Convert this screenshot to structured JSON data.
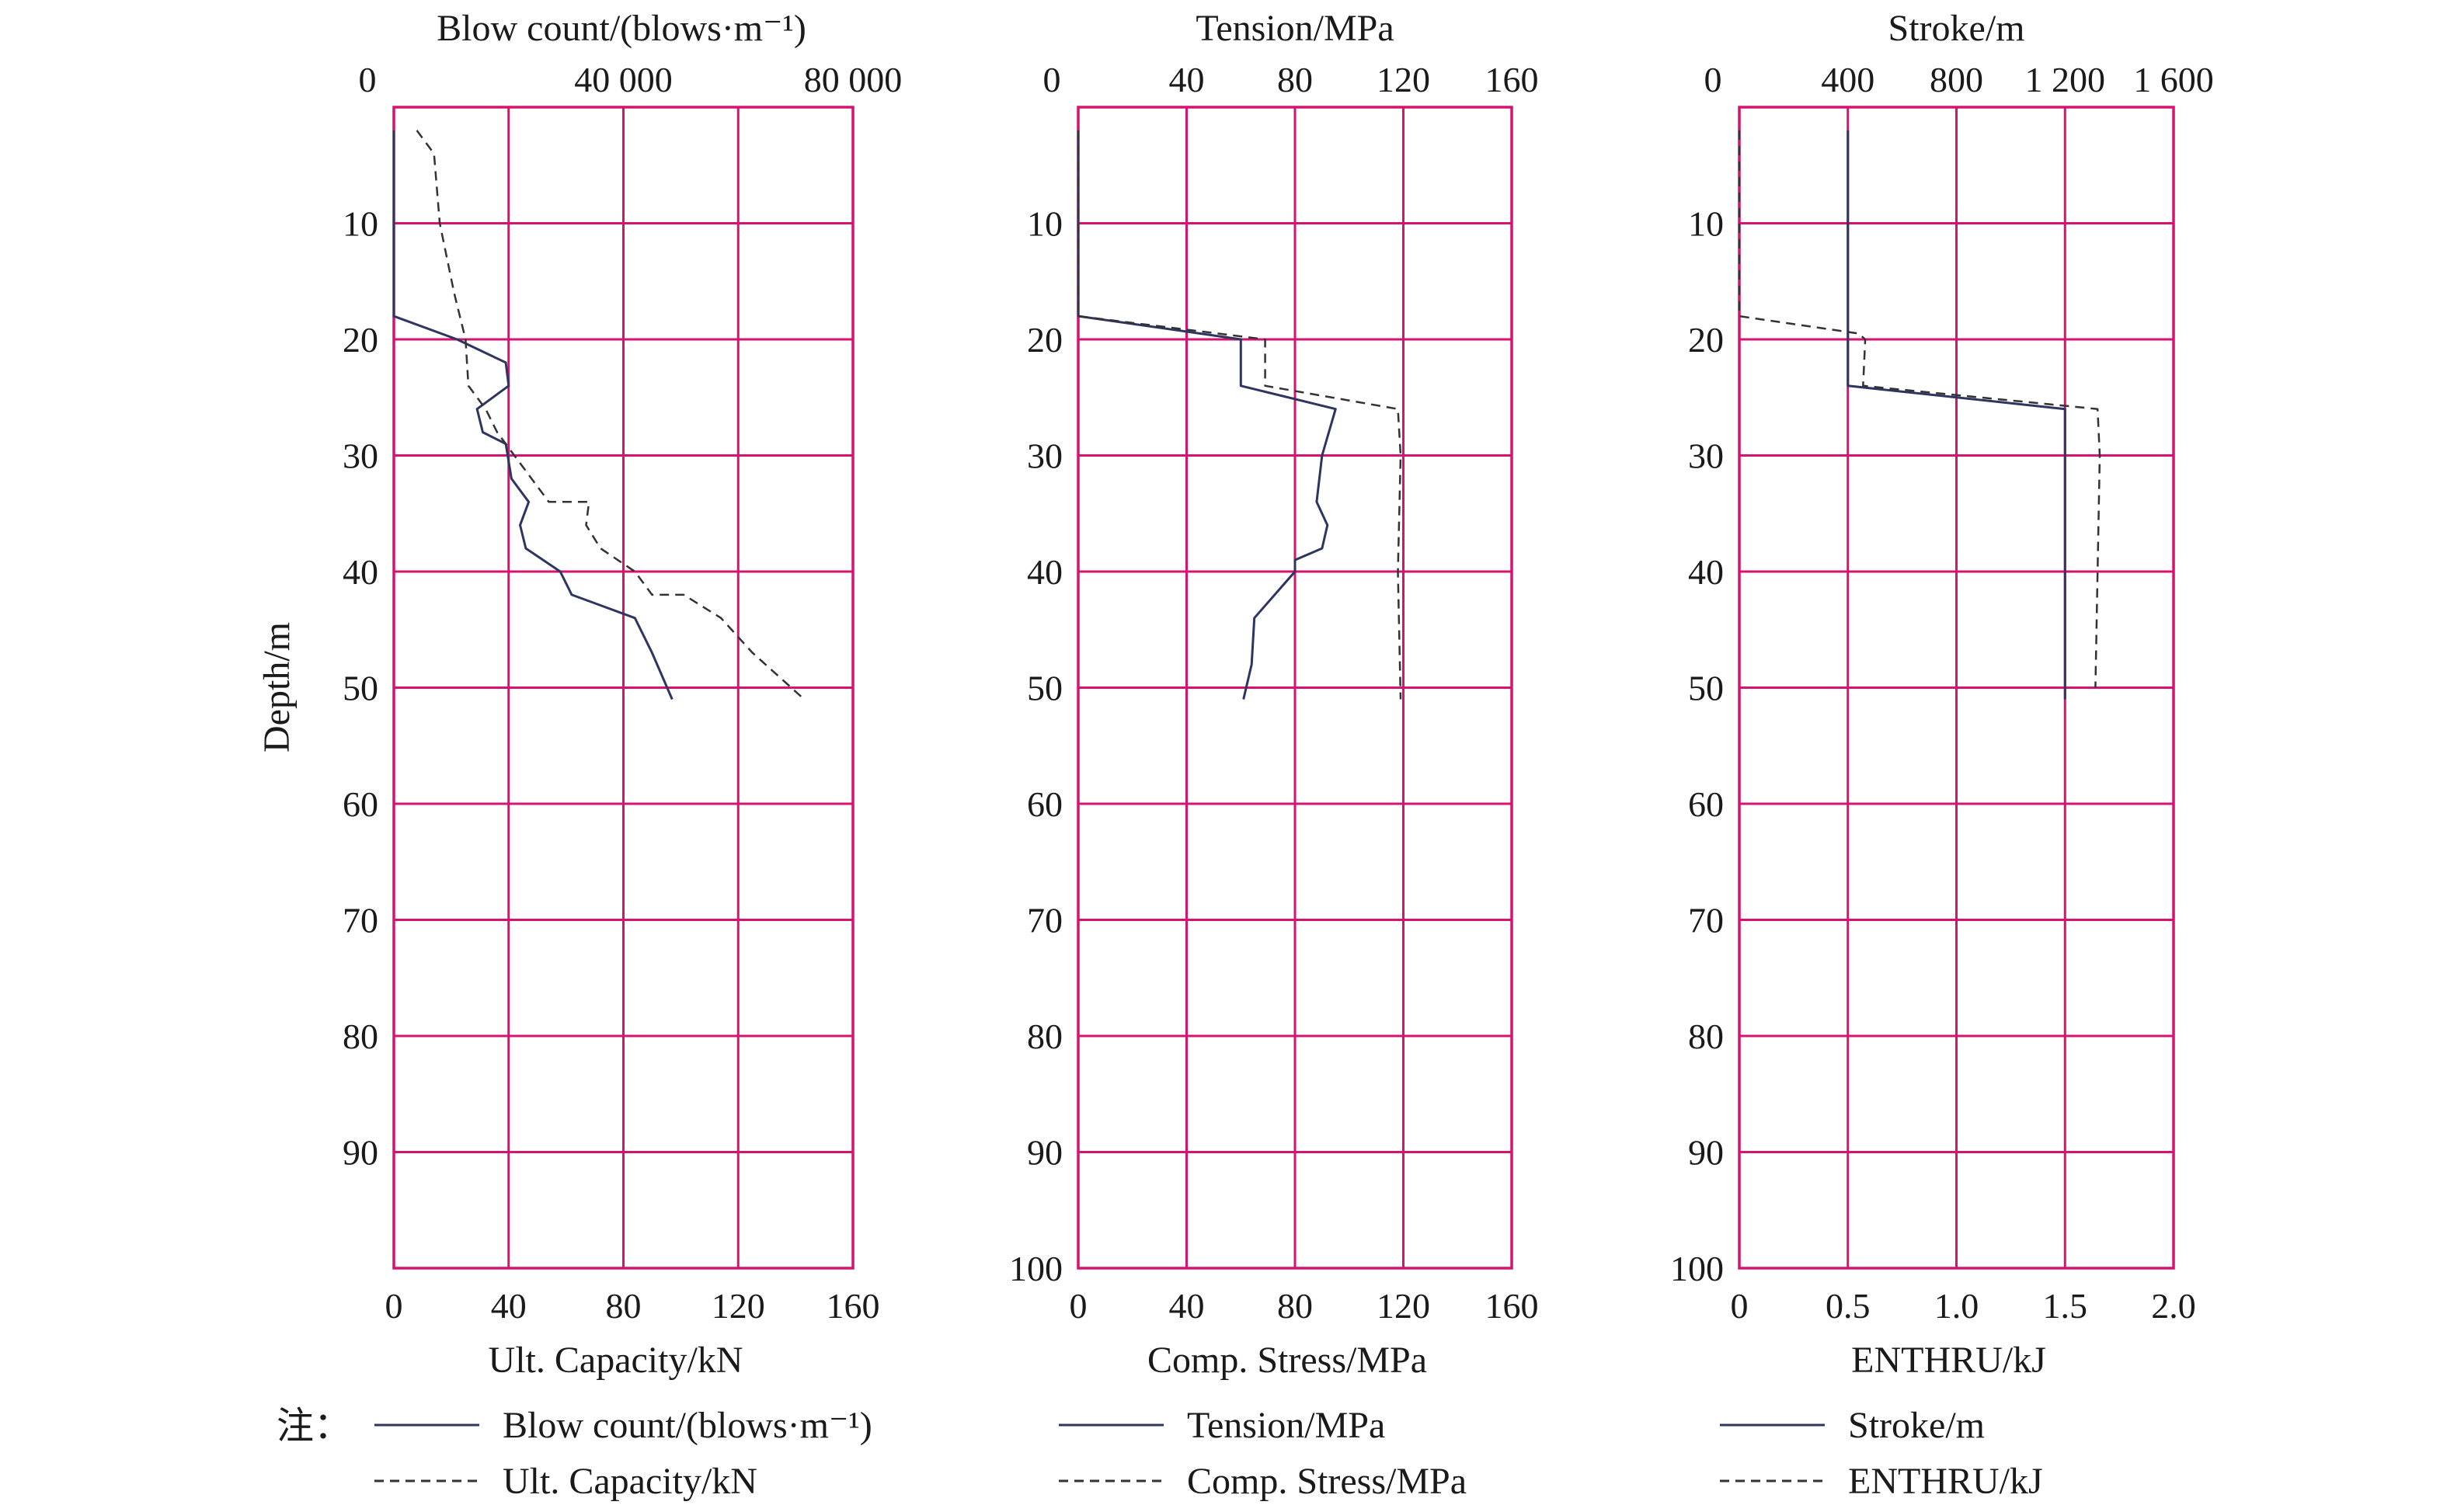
{
  "colors": {
    "grid": "#d6136f",
    "solid_line": "#2e3560",
    "dashed_line": "#333333",
    "text": "#1a1a1a",
    "background": "#ffffff"
  },
  "y_axis": {
    "label": "Depth/m",
    "ticks": [
      "0",
      "10",
      "20",
      "30",
      "40",
      "50",
      "60",
      "70",
      "80",
      "90",
      "100"
    ]
  },
  "legend": {
    "note": "注："
  },
  "chart_data": [
    {
      "type": "line",
      "top_axis": {
        "label": "Blow count/(blows·m⁻¹)",
        "ticks": [
          "0",
          "40 000",
          "80 000"
        ],
        "range": [
          0,
          80000
        ]
      },
      "bottom_axis": {
        "label": "Ult. Capacity/kN",
        "ticks": [
          "0",
          "40",
          "80",
          "120",
          "160"
        ],
        "range": [
          0,
          160
        ]
      },
      "ylim": [
        0,
        100
      ],
      "grid": true,
      "series": [
        {
          "name": "Blow count/(blows·m⁻¹)",
          "axis": "bottom",
          "style": "solid",
          "x": [
            0,
            0,
            22,
            39,
            40,
            29,
            31,
            39,
            41,
            47,
            44,
            46,
            58,
            62,
            84,
            90,
            97
          ],
          "y": [
            2,
            18,
            20,
            22,
            24,
            26,
            28,
            29,
            32,
            34,
            36,
            38,
            40,
            42,
            44,
            47,
            51
          ]
        },
        {
          "name": "Ult. Capacity/kN",
          "axis": "bottom",
          "style": "dashed",
          "x": [
            8,
            14,
            16,
            21,
            25,
            26,
            32,
            36,
            42,
            48,
            54,
            62,
            68,
            67,
            72,
            84,
            90,
            101,
            114,
            125,
            143
          ],
          "y": [
            2,
            4,
            10,
            16,
            20,
            24,
            26,
            28,
            30,
            32,
            34,
            34,
            34,
            36,
            38,
            40,
            42,
            42,
            44,
            47,
            51
          ]
        }
      ]
    },
    {
      "type": "line",
      "top_axis": {
        "label": "Tension/MPa",
        "ticks": [
          "0",
          "40",
          "80",
          "120",
          "160"
        ],
        "range": [
          0,
          160
        ]
      },
      "bottom_axis": {
        "label": "Comp. Stress/MPa",
        "ticks": [
          "0",
          "40",
          "80",
          "120",
          "160"
        ],
        "range": [
          0,
          160
        ]
      },
      "ylim": [
        0,
        100
      ],
      "grid": true,
      "series": [
        {
          "name": "Tension/MPa",
          "axis": "top",
          "style": "solid",
          "x": [
            0,
            0,
            60,
            60,
            60,
            95,
            90,
            88,
            92,
            90,
            80,
            80,
            65,
            64,
            61
          ],
          "y": [
            2,
            18,
            20,
            21,
            24,
            26,
            30,
            34,
            36,
            38,
            39,
            40,
            44,
            48,
            51
          ]
        },
        {
          "name": "Comp. Stress/MPa",
          "axis": "bottom",
          "style": "dashed",
          "x": [
            0,
            0,
            69,
            69,
            118,
            119,
            118,
            119
          ],
          "y": [
            2,
            18,
            20,
            24,
            26,
            30,
            40,
            51
          ]
        }
      ]
    },
    {
      "type": "line",
      "top_axis": {
        "label": "Stroke/m",
        "ticks": [
          "0",
          "400",
          "800",
          "1 200",
          "1 600"
        ],
        "range": [
          0,
          1600
        ]
      },
      "bottom_axis": {
        "label": "ENTHRU/kJ",
        "ticks": [
          "0",
          "0.5",
          "1.0",
          "1.5",
          "2.0"
        ],
        "range": [
          0,
          2
        ]
      },
      "ylim": [
        0,
        100
      ],
      "grid": true,
      "series": [
        {
          "name": "Stroke/m",
          "axis": "bottom",
          "style": "solid",
          "x": [
            0.5,
            0.5,
            0.5,
            1.5,
            1.5,
            1.5
          ],
          "y": [
            2,
            20,
            24,
            26,
            40,
            51
          ]
        },
        {
          "name": "ENTHRU/kJ",
          "axis": "bottom",
          "style": "dashed",
          "x": [
            0,
            0,
            0.55,
            0.58,
            0.57,
            1.65,
            1.66,
            1.65,
            1.64
          ],
          "y": [
            2,
            18,
            19.5,
            20,
            24,
            26,
            30,
            40,
            50
          ]
        }
      ]
    }
  ]
}
